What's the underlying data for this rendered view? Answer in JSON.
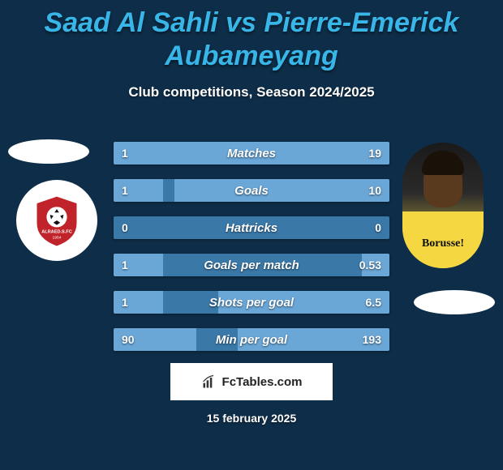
{
  "background_color": "#0e2d48",
  "title_color": "#38b6e8",
  "subtitle_color": "#ffffff",
  "title": "Saad Al Sahli vs Pierre-Emerick Aubameyang",
  "subtitle": "Club competitions, Season 2024/2025",
  "left_club": {
    "name": "ALRAED S FC",
    "year": "1954",
    "badge_bg": "#ffffff",
    "shield_color": "#c0242a",
    "ball_color": "#111111"
  },
  "right_player": {
    "shirt_text": "Borusse!",
    "shirt_color": "#f5d742",
    "skin_color": "#5a3a1e"
  },
  "bars": {
    "base_color": "#3a78a8",
    "fill_left_color": "#6aa6d6",
    "fill_right_color": "#6aa6d6",
    "label_color": "#ffffff",
    "label_fontsize": 15,
    "value_fontsize": 14,
    "rows": [
      {
        "label": "Matches",
        "left": "1",
        "right": "19",
        "left_pct": 18,
        "right_pct": 86
      },
      {
        "label": "Goals",
        "left": "1",
        "right": "10",
        "left_pct": 18,
        "right_pct": 78
      },
      {
        "label": "Hattricks",
        "left": "0",
        "right": "0",
        "left_pct": 0,
        "right_pct": 0
      },
      {
        "label": "Goals per match",
        "left": "1",
        "right": "0.53",
        "left_pct": 18,
        "right_pct": 10
      },
      {
        "label": "Shots per goal",
        "left": "1",
        "right": "6.5",
        "left_pct": 18,
        "right_pct": 62
      },
      {
        "label": "Min per goal",
        "left": "90",
        "right": "193",
        "left_pct": 30,
        "right_pct": 55
      }
    ]
  },
  "footer": {
    "brand": "FcTables.com",
    "date": "15 february 2025",
    "box_bg": "#ffffff",
    "text_color": "#222222"
  }
}
